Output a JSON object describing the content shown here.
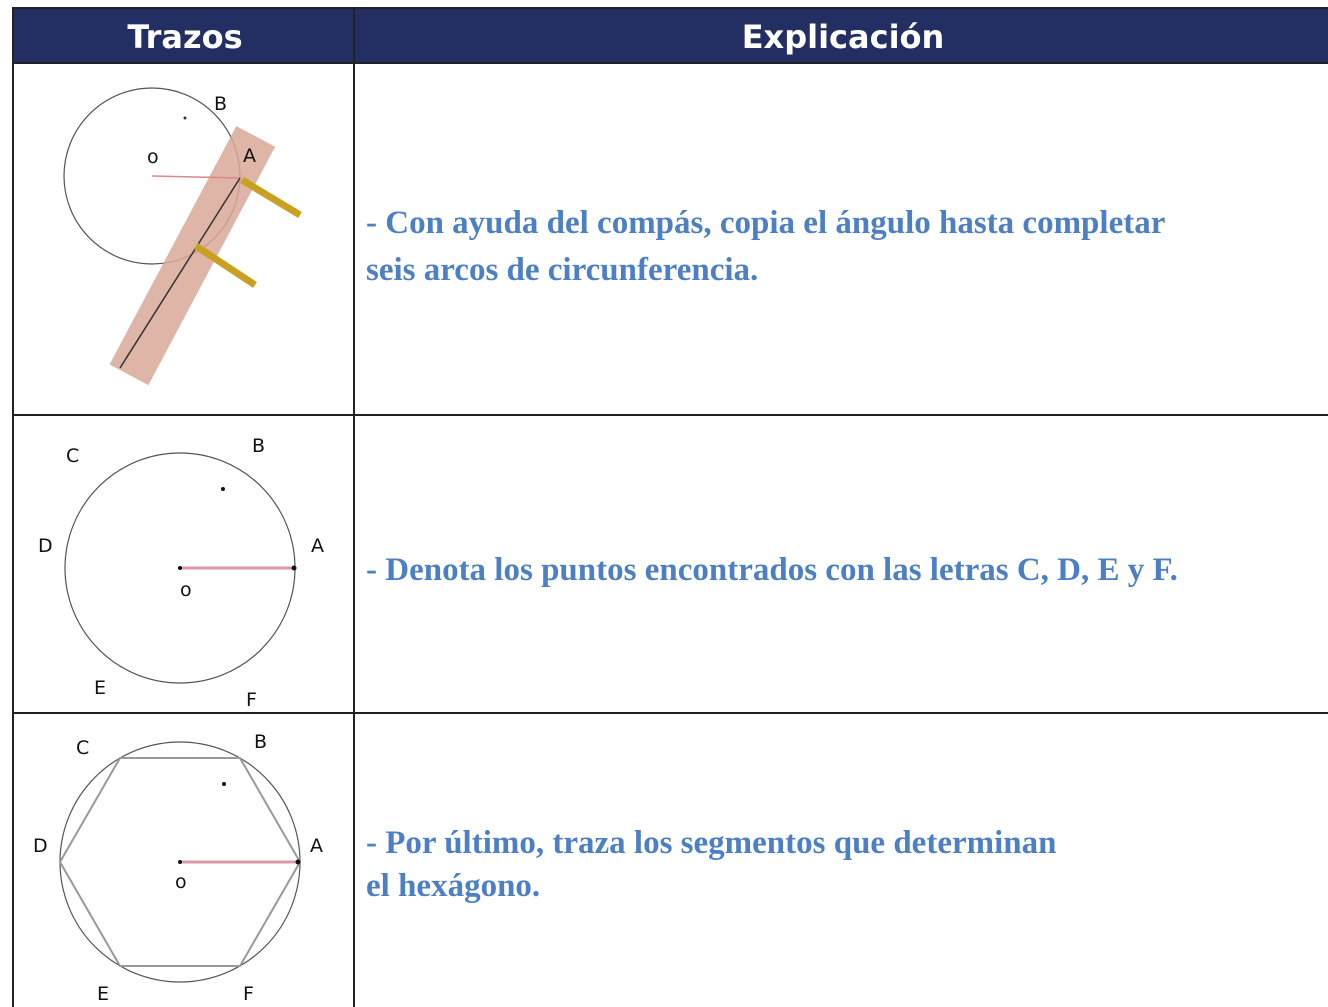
{
  "table": {
    "header": [
      "Trazos",
      "Explicación"
    ],
    "rows": [
      {
        "figure_labels": [
          "B",
          "o",
          "A"
        ],
        "lines": [
          "- Con ayuda del compás, copia el ángulo hasta completar",
          "seis arcos de circunferencia."
        ]
      },
      {
        "figure_labels": [
          "C",
          "B",
          "D",
          "A",
          "o",
          "E",
          "F"
        ],
        "lines": [
          "- Denota los puntos encontrados con las letras C, D, E y F."
        ]
      },
      {
        "figure_labels": [
          "C",
          "B",
          "D",
          "A",
          "o",
          "E",
          "F"
        ],
        "lines": [
          "- Por último, traza los segmentos que determinan",
          "el hexágono."
        ]
      }
    ]
  }
}
